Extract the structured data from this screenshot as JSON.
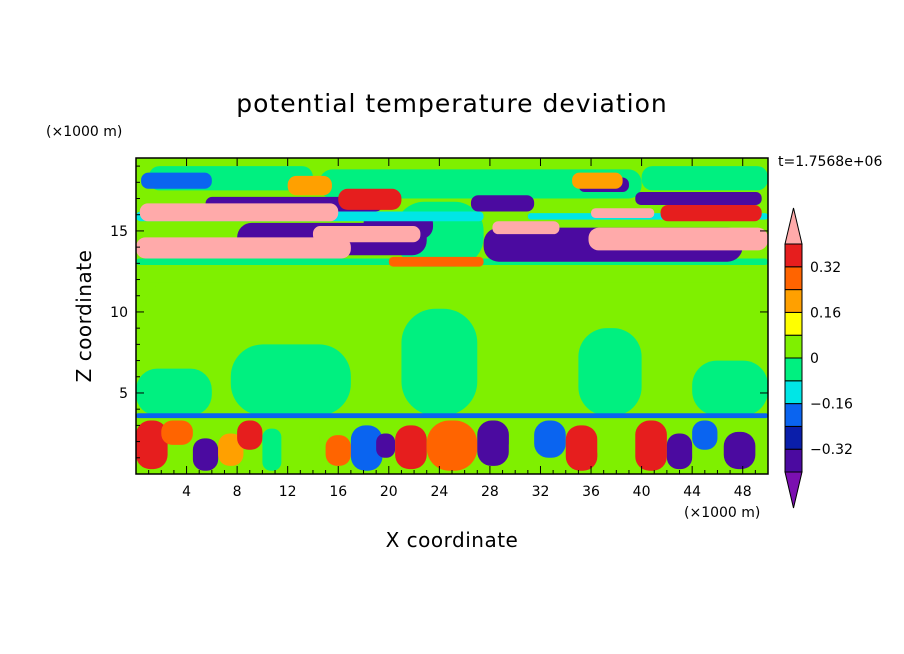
{
  "chart_data": {
    "type": "heatmap",
    "title": "potential temperature deviation",
    "xlabel": "X coordinate",
    "ylabel": "Z coordinate",
    "x_unit": "(×1000 m)",
    "y_unit": "(×1000 m)",
    "time_label": "t=1.7568e+06",
    "xlim": [
      0,
      50
    ],
    "ylim": [
      0,
      19.5
    ],
    "x_ticks": [
      4,
      8,
      12,
      16,
      20,
      24,
      28,
      32,
      36,
      40,
      44,
      48
    ],
    "y_ticks": [
      5,
      10,
      15
    ],
    "colorbar": {
      "levels": [
        -0.4,
        -0.32,
        -0.24,
        -0.16,
        -0.08,
        0,
        0.08,
        0.16,
        0.24,
        0.32,
        0.4
      ],
      "labeled_levels": [
        0.32,
        0.16,
        0,
        -0.16,
        -0.32
      ],
      "colors": [
        "#7b0fb0",
        "#4b0aa0",
        "#0a1eaa",
        "#0a64f0",
        "#00e6e6",
        "#00f080",
        "#7ff000",
        "#ffff00",
        "#ffa000",
        "#ff6400",
        "#e61e1e",
        "#ffaaaa"
      ],
      "extend": "both"
    },
    "regions": [
      {
        "x": [
          0,
          50
        ],
        "y": [
          3.6,
          12.8
        ],
        "value": 0.04
      },
      {
        "x": [
          0,
          50
        ],
        "y": [
          11.8,
          13.3
        ],
        "value": 0.04
      },
      {
        "x": [
          0,
          50
        ],
        "y": [
          16.5,
          19.5
        ],
        "value": 0.04
      },
      {
        "x": [
          0,
          6
        ],
        "y": [
          3.6,
          6.5
        ],
        "value": -0.04
      },
      {
        "x": [
          7.5,
          17
        ],
        "y": [
          3.6,
          8
        ],
        "value": -0.04
      },
      {
        "x": [
          21,
          27
        ],
        "y": [
          3.6,
          10.2
        ],
        "value": -0.04
      },
      {
        "x": [
          35,
          40
        ],
        "y": [
          3.6,
          9
        ],
        "value": -0.04
      },
      {
        "x": [
          44,
          50
        ],
        "y": [
          3.6,
          7
        ],
        "value": -0.04
      },
      {
        "x": [
          20.5,
          27.5
        ],
        "y": [
          12.8,
          16.8
        ],
        "value": -0.04
      },
      {
        "x": [
          1,
          14
        ],
        "y": [
          17.5,
          19
        ],
        "value": -0.04
      },
      {
        "x": [
          14.5,
          40
        ],
        "y": [
          17,
          18.8
        ],
        "value": -0.04
      },
      {
        "x": [
          40,
          50
        ],
        "y": [
          17.5,
          19
        ],
        "value": -0.04
      },
      {
        "x": [
          0,
          50
        ],
        "y": [
          3.45,
          3.75
        ],
        "value": -0.2
      },
      {
        "x": [
          0,
          50
        ],
        "y": [
          12.9,
          13.3
        ],
        "value": -0.04
      },
      {
        "x": [
          0.4,
          6
        ],
        "y": [
          17.6,
          18.6
        ],
        "value": -0.2
      },
      {
        "x": [
          5.5,
          19.5
        ],
        "y": [
          16.2,
          17.1
        ],
        "value": -0.36
      },
      {
        "x": [
          26.5,
          31.5
        ],
        "y": [
          16.2,
          17.2
        ],
        "value": -0.36
      },
      {
        "x": [
          35,
          39
        ],
        "y": [
          17.4,
          18.3
        ],
        "value": -0.36
      },
      {
        "x": [
          39.5,
          49.5
        ],
        "y": [
          16.6,
          17.4
        ],
        "value": -0.36
      },
      {
        "x": [
          8,
          23
        ],
        "y": [
          13.5,
          15.5
        ],
        "value": -0.36
      },
      {
        "x": [
          18,
          23.5
        ],
        "y": [
          14.5,
          16.2
        ],
        "value": -0.36
      },
      {
        "x": [
          27.5,
          48
        ],
        "y": [
          13.1,
          15.2
        ],
        "value": -0.36
      },
      {
        "x": [
          0,
          27.5
        ],
        "y": [
          15.6,
          16.2
        ],
        "value": -0.12
      },
      {
        "x": [
          31,
          50
        ],
        "y": [
          15.7,
          16.1
        ],
        "value": -0.12
      },
      {
        "x": [
          20,
          27.5
        ],
        "y": [
          12.8,
          13.4
        ],
        "value": 0.28
      },
      {
        "x": [
          34.5,
          38.5
        ],
        "y": [
          17.6,
          18.6
        ],
        "value": 0.2
      },
      {
        "x": [
          12,
          15.5
        ],
        "y": [
          17.2,
          18.4
        ],
        "value": 0.2
      },
      {
        "x": [
          16,
          21
        ],
        "y": [
          16.3,
          17.6
        ],
        "value": 0.36
      },
      {
        "x": [
          41.5,
          49.5
        ],
        "y": [
          15.6,
          16.6
        ],
        "value": 0.36
      },
      {
        "x": [
          0,
          17
        ],
        "y": [
          13.3,
          14.6
        ],
        "value": 0.44
      },
      {
        "x": [
          0.3,
          16
        ],
        "y": [
          15.6,
          16.7
        ],
        "value": 0.44
      },
      {
        "x": [
          14,
          22.5
        ],
        "y": [
          14.3,
          15.3
        ],
        "value": 0.44
      },
      {
        "x": [
          28.2,
          33.5
        ],
        "y": [
          14.8,
          15.6
        ],
        "value": 0.44
      },
      {
        "x": [
          35.8,
          50
        ],
        "y": [
          13.8,
          15.2
        ],
        "value": 0.44
      },
      {
        "x": [
          36,
          41
        ],
        "y": [
          15.8,
          16.4
        ],
        "value": 0.44
      },
      {
        "x": [
          0,
          2.5
        ],
        "y": [
          0.3,
          3.3
        ],
        "value": 0.36
      },
      {
        "x": [
          2,
          4.5
        ],
        "y": [
          1.8,
          3.3
        ],
        "value": 0.28
      },
      {
        "x": [
          4.5,
          6.5
        ],
        "y": [
          0.2,
          2.2
        ],
        "value": -0.36
      },
      {
        "x": [
          6.5,
          8.5
        ],
        "y": [
          0.5,
          2.5
        ],
        "value": 0.2
      },
      {
        "x": [
          8,
          10
        ],
        "y": [
          1.5,
          3.3
        ],
        "value": 0.36
      },
      {
        "x": [
          10,
          11.5
        ],
        "y": [
          0.2,
          2.8
        ],
        "value": -0.04
      },
      {
        "x": [
          12,
          14.5
        ],
        "y": [
          1.2,
          3.2
        ],
        "value": 0.04
      },
      {
        "x": [
          15,
          17
        ],
        "y": [
          0.5,
          2.4
        ],
        "value": 0.28
      },
      {
        "x": [
          17,
          19.5
        ],
        "y": [
          0.2,
          3
        ],
        "value": -0.2
      },
      {
        "x": [
          19,
          20.5
        ],
        "y": [
          1,
          2.5
        ],
        "value": -0.36
      },
      {
        "x": [
          20.5,
          23
        ],
        "y": [
          0.3,
          3
        ],
        "value": 0.36
      },
      {
        "x": [
          23,
          27
        ],
        "y": [
          0.2,
          3.3
        ],
        "value": 0.28
      },
      {
        "x": [
          27,
          29.5
        ],
        "y": [
          0.5,
          3.3
        ],
        "value": -0.36
      },
      {
        "x": [
          29.5,
          31.5
        ],
        "y": [
          0.2,
          2.5
        ],
        "value": 0.04
      },
      {
        "x": [
          31.5,
          34
        ],
        "y": [
          1,
          3.3
        ],
        "value": -0.2
      },
      {
        "x": [
          34,
          36.5
        ],
        "y": [
          0.2,
          3
        ],
        "value": 0.36
      },
      {
        "x": [
          36.5,
          39.5
        ],
        "y": [
          0.3,
          3.3
        ],
        "value": 0.04
      },
      {
        "x": [
          39.5,
          42
        ],
        "y": [
          0.2,
          3.3
        ],
        "value": 0.36
      },
      {
        "x": [
          42,
          44
        ],
        "y": [
          0.3,
          2.5
        ],
        "value": -0.36
      },
      {
        "x": [
          44,
          46
        ],
        "y": [
          1.5,
          3.3
        ],
        "value": -0.2
      },
      {
        "x": [
          46.5,
          49
        ],
        "y": [
          0.3,
          2.6
        ],
        "value": -0.36
      }
    ]
  }
}
